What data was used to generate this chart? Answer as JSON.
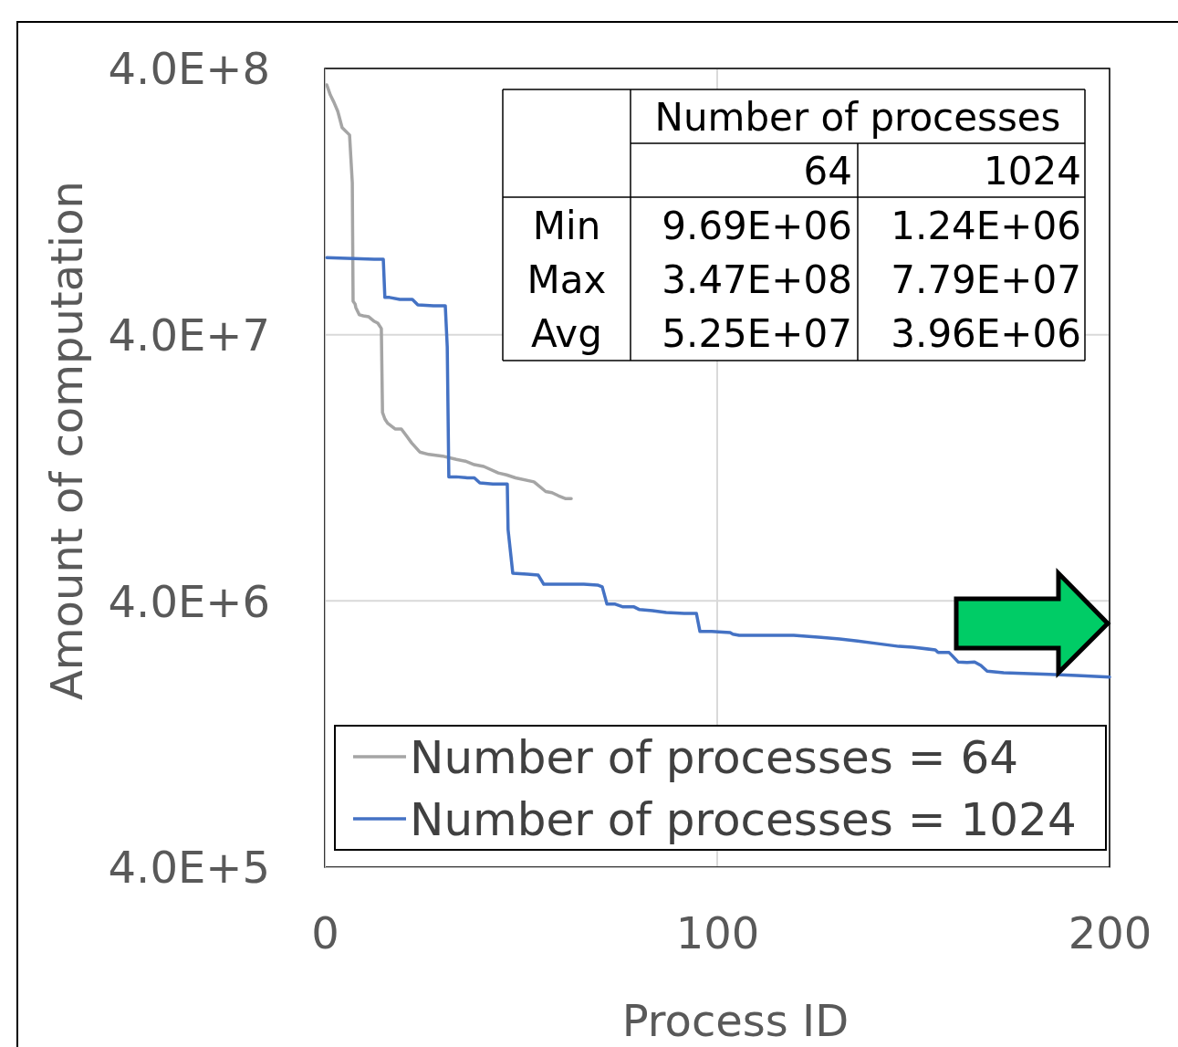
{
  "chart_data": {
    "type": "line",
    "xlabel": "Process ID",
    "ylabel": "Amount of computation",
    "log": "y",
    "grid": true,
    "legend": "bottom",
    "xlim": [
      0,
      200
    ],
    "xticks": [
      0,
      100,
      200
    ],
    "ylim": [
      400000,
      400000000
    ],
    "yticks": [
      {
        "value": 400000,
        "label": "4.0E+5"
      },
      {
        "value": 4000000,
        "label": "4.0E+6"
      },
      {
        "value": 40000000,
        "label": "4.0E+7"
      },
      {
        "value": 400000000,
        "label": "4.0E+8"
      }
    ],
    "annotations": [
      "Number of processes",
      "64",
      "1024",
      "Min",
      "9.69E+06",
      "1.24E+06",
      "Max",
      "3.47E+08",
      "7.79E+07",
      "Avg",
      "5.25E+07",
      "3.96E+06"
    ],
    "series": [
      {
        "name": "Number of processes = 64",
        "color": "#a5a5a5",
        "x": [
          0.5,
          1.4,
          2.3,
          3.3,
          4.4,
          6.3,
          7.0,
          7.2,
          7.7,
          7.9,
          8.8,
          9.8,
          11.2,
          12.6,
          13.5,
          14.4,
          14.7,
          15.3,
          16.0,
          17.9,
          19.5,
          20.9,
          22.1,
          24.2,
          26.5,
          30,
          33.5,
          35.8,
          38.1,
          40.5,
          44.2,
          46.3,
          48.6,
          53.3,
          56.3,
          57.9,
          59.5,
          61.4,
          62.8
        ],
        "values": [
          347000000,
          318000000,
          299000000,
          276000000,
          240000000,
          225000000,
          149000000,
          53400000,
          52200000,
          50600000,
          47500000,
          47100000,
          46700000,
          44900000,
          44200000,
          42200000,
          20400000,
          19300000,
          18600000,
          17700000,
          17700000,
          16600000,
          15700000,
          14500000,
          14200000,
          14000000,
          13600000,
          13400000,
          13000000,
          12800000,
          12100000,
          11900000,
          11600000,
          11200000,
          10300000,
          10200000,
          9940000,
          9690000,
          9690000
        ]
      },
      {
        "name": "Number of processes = 1024",
        "color": "#4472c4",
        "x": [
          0.5,
          5.6,
          12.6,
          14.9,
          15.3,
          16.5,
          19.1,
          22.3,
          23.7,
          27.7,
          30.7,
          31.2,
          31.6,
          33.5,
          36.3,
          38.1,
          39.5,
          42.8,
          46.5,
          46.7,
          47.9,
          51.6,
          54.4,
          55.8,
          66.0,
          69.5,
          70.7,
          71.9,
          74.0,
          76.0,
          78.8,
          80.2,
          83.5,
          87.0,
          91.6,
          94.7,
          95.6,
          98.6,
          103.3,
          104.0,
          105.6,
          119.5,
          126.5,
          131.2,
          135.8,
          140.5,
          146.3,
          149.8,
          155.6,
          156.3,
          159.1,
          159.8,
          161.4,
          163.7,
          165.6,
          167.2,
          168.8,
          173.0,
          184.7,
          191.6,
          200
        ],
        "values": [
          77900000,
          77400000,
          76800000,
          76800000,
          55200000,
          55200000,
          54300000,
          54300000,
          51800000,
          51400000,
          51400000,
          36000000,
          11700000,
          11700000,
          11600000,
          11600000,
          11100000,
          11000000,
          11000000,
          7420000,
          5080000,
          5040000,
          5000000,
          4620000,
          4620000,
          4590000,
          4520000,
          3890000,
          3890000,
          3800000,
          3800000,
          3710000,
          3680000,
          3620000,
          3590000,
          3590000,
          3070000,
          3070000,
          3040000,
          3000000,
          2970000,
          2970000,
          2920000,
          2880000,
          2830000,
          2770000,
          2700000,
          2680000,
          2620000,
          2560000,
          2560000,
          2500000,
          2360000,
          2350000,
          2360000,
          2290000,
          2180000,
          2150000,
          2120000,
          2100000,
          2070000
        ]
      }
    ]
  }
}
